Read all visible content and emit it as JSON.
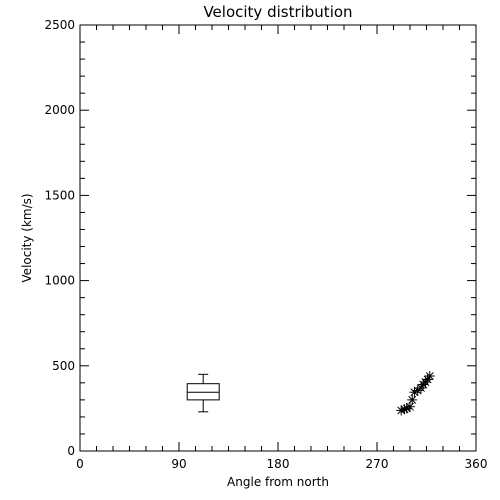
{
  "chart_data": {
    "type": "scatter",
    "title": "Velocity distribution",
    "xlabel": "Angle from north",
    "ylabel": "Velocity (km/s)",
    "xlim": [
      0,
      360
    ],
    "ylim": [
      0,
      2500
    ],
    "xticks": [
      0,
      90,
      180,
      270,
      360
    ],
    "yticks": [
      0,
      500,
      1000,
      1500,
      2000,
      2500
    ],
    "grid": false,
    "colors": {
      "foreground": "#000000",
      "background": "#ffffff"
    },
    "boxplot": {
      "angle": 112,
      "min": 230,
      "q1": 300,
      "median": 345,
      "q3": 395,
      "max": 450
    },
    "points": [
      {
        "x": 292,
        "y": 238
      },
      {
        "x": 295,
        "y": 245
      },
      {
        "x": 297,
        "y": 250
      },
      {
        "x": 300,
        "y": 260
      },
      {
        "x": 302,
        "y": 300
      },
      {
        "x": 304,
        "y": 345
      },
      {
        "x": 307,
        "y": 355
      },
      {
        "x": 310,
        "y": 370
      },
      {
        "x": 312,
        "y": 390
      },
      {
        "x": 314,
        "y": 405
      },
      {
        "x": 316,
        "y": 420
      },
      {
        "x": 318,
        "y": 440
      }
    ]
  }
}
